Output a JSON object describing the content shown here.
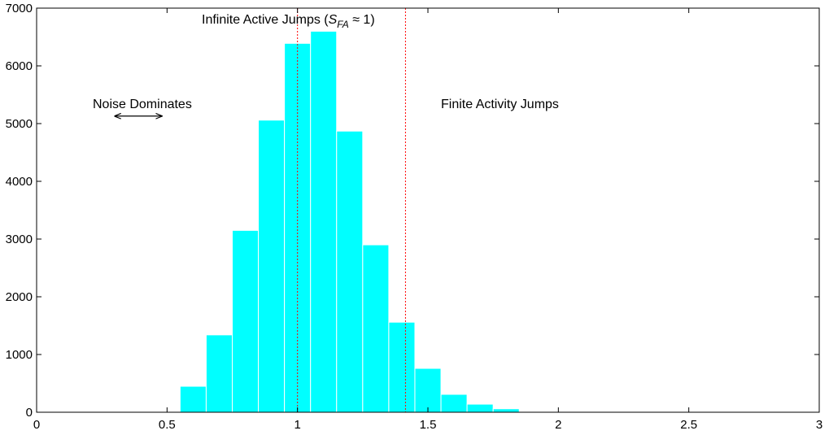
{
  "chart_data": {
    "type": "bar",
    "subtype": "histogram",
    "title": "",
    "xlabel": "",
    "ylabel": "",
    "xlim": [
      0,
      3
    ],
    "ylim": [
      0,
      7000
    ],
    "xticks": [
      "0",
      "0.5",
      "1",
      "1.5",
      "2",
      "2.5",
      "3"
    ],
    "yticks": [
      "0",
      "1000",
      "2000",
      "3000",
      "4000",
      "5000",
      "6000",
      "7000"
    ],
    "grid": false,
    "legend": "none",
    "bar_color": "#00FFFF",
    "bar_edge_color": "#FFFFFF",
    "bin_edges": [
      0.55,
      0.65,
      0.75,
      0.85,
      0.95,
      1.05,
      1.15,
      1.25,
      1.35,
      1.45,
      1.55,
      1.65,
      1.75,
      1.85
    ],
    "values": [
      450,
      1340,
      3150,
      5060,
      6390,
      6600,
      4870,
      2900,
      1560,
      760,
      310,
      140,
      60
    ],
    "reference_lines": [
      {
        "x": 1.0,
        "color": "#FF0000",
        "style": "dotted"
      },
      {
        "x": 1.414,
        "color": "#FF0000",
        "style": "dotted"
      }
    ],
    "annotations": {
      "infinite_prefix": "Infinite Active Jumps (",
      "infinite_symbol": "S",
      "infinite_subscript": "FA",
      "infinite_suffix": " ≈ 1)",
      "noise": "Noise Dominates",
      "finite": "Finite Activity Jumps"
    },
    "noise_arrow": {
      "x_from": 0.3,
      "x_to": 0.48,
      "y": 5130
    }
  }
}
